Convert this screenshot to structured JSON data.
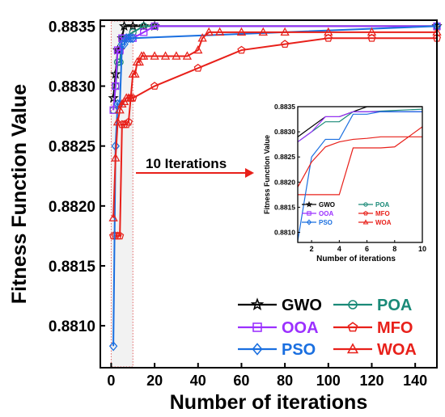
{
  "chart_data": {
    "type": "line",
    "xlabel": "Number of iterations",
    "ylabel": "Fitness Function Value",
    "xlim": [
      -5,
      150
    ],
    "ylim": [
      0.88065,
      0.88355
    ],
    "xticks": [
      "0",
      "20",
      "40",
      "60",
      "80",
      "100",
      "120",
      "140"
    ],
    "yticks": [
      "0.8810",
      "0.8815",
      "0.8820",
      "0.8825",
      "0.8830",
      "0.8835"
    ],
    "annotation": "10 Iterations",
    "highlight_region": [
      0,
      10
    ],
    "series": [
      {
        "name": "GWO",
        "color": "#000000",
        "marker": "star",
        "x": [
          1,
          2,
          3,
          4,
          5,
          6,
          10,
          15,
          20,
          150
        ],
        "y": [
          0.8829,
          0.8831,
          0.8833,
          0.8833,
          0.8834,
          0.8835,
          0.8835,
          0.8835,
          0.8835,
          0.8835
        ]
      },
      {
        "name": "POA",
        "color": "#1a8a78",
        "marker": "circle",
        "x": [
          1,
          2,
          3,
          4,
          5,
          6,
          10,
          15,
          20,
          150
        ],
        "y": [
          0.8828,
          0.883,
          0.8832,
          0.8832,
          0.8834,
          0.8834,
          0.88345,
          0.8835,
          0.8835,
          0.8835
        ]
      },
      {
        "name": "OOA",
        "color": "#9b30ff",
        "marker": "square",
        "x": [
          1,
          2,
          3,
          4,
          5,
          6,
          10,
          15,
          20,
          150
        ],
        "y": [
          0.8828,
          0.883,
          0.8833,
          0.8833,
          0.8834,
          0.8834,
          0.8834,
          0.88345,
          0.8835,
          0.8835
        ]
      },
      {
        "name": "MFO",
        "color": "#e8201a",
        "marker": "pentagon",
        "x": [
          1,
          2,
          3,
          4,
          5,
          6,
          7,
          8,
          9,
          10,
          20,
          40,
          60,
          80,
          100,
          120,
          150
        ],
        "y": [
          0.88175,
          0.88175,
          0.88175,
          0.88175,
          0.88268,
          0.88268,
          0.88268,
          0.8827,
          0.8829,
          0.8829,
          0.883,
          0.88315,
          0.8833,
          0.88335,
          0.8834,
          0.8834,
          0.8834
        ]
      },
      {
        "name": "PSO",
        "color": "#1a6fe0",
        "marker": "diamond",
        "x": [
          1,
          2,
          3,
          4,
          5,
          6,
          7,
          8,
          9,
          10,
          150
        ],
        "y": [
          0.88083,
          0.8825,
          0.88285,
          0.88285,
          0.88335,
          0.88335,
          0.8834,
          0.8834,
          0.8834,
          0.8834,
          0.8835
        ]
      },
      {
        "name": "WOA",
        "color": "#e8201a",
        "marker": "triangle",
        "x": [
          1,
          2,
          3,
          4,
          5,
          6,
          7,
          8,
          9,
          10,
          11,
          12,
          13,
          14,
          15,
          20,
          25,
          30,
          35,
          40,
          42,
          45,
          50,
          60,
          70,
          80,
          100,
          120,
          150
        ],
        "y": [
          0.8819,
          0.8824,
          0.8827,
          0.8828,
          0.88285,
          0.88287,
          0.8829,
          0.8829,
          0.8829,
          0.8831,
          0.8831,
          0.8832,
          0.8832,
          0.88325,
          0.88325,
          0.88325,
          0.88325,
          0.88325,
          0.88325,
          0.8833,
          0.8834,
          0.88345,
          0.88345,
          0.88345,
          0.88345,
          0.88345,
          0.88345,
          0.88345,
          0.88345
        ]
      }
    ],
    "inset": {
      "xlabel": "Number of iterations",
      "ylabel": "Fitness Function Value",
      "xlim": [
        1,
        10
      ],
      "ylim": [
        0.8808,
        0.8835
      ],
      "xticks": [
        "2",
        "4",
        "6",
        "8",
        "10"
      ],
      "yticks": [
        "0.8810",
        "0.8815",
        "0.8820",
        "0.8825",
        "0.8830",
        "0.8835"
      ]
    },
    "legend": {
      "placement": "bottom-right"
    }
  }
}
